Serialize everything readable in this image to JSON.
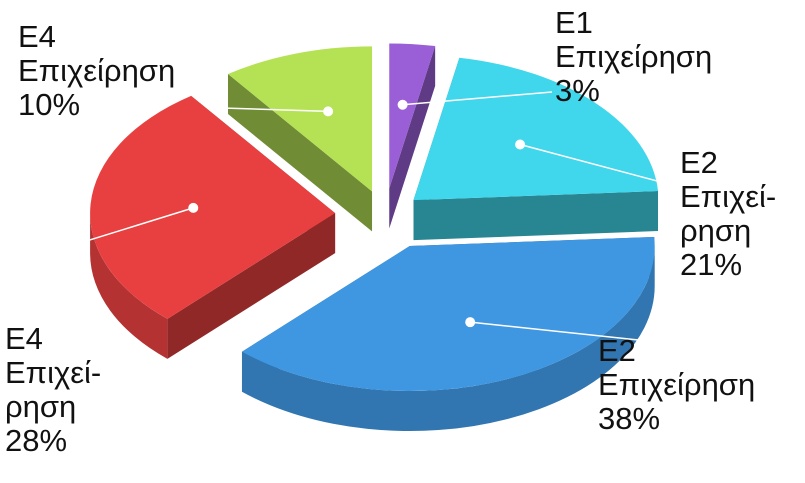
{
  "chart_data": {
    "type": "pie",
    "three_d": true,
    "exploded": true,
    "title": "",
    "legend": "none",
    "slices": [
      {
        "label_lines": [
          "E1",
          "Επιχείρηση",
          "3%"
        ],
        "value": 3,
        "color": "#9a5fd6"
      },
      {
        "label_lines": [
          "E2",
          "Επιχεί-",
          "ρηση",
          "21%"
        ],
        "value": 21,
        "color": "#40d6ec"
      },
      {
        "label_lines": [
          "E2",
          "Επιχείρηση",
          "38%"
        ],
        "value": 38,
        "color": "#3f97e2"
      },
      {
        "label_lines": [
          "E4",
          "Επιχεί-",
          "ρηση",
          "28%"
        ],
        "value": 28,
        "color": "#e84040"
      },
      {
        "label_lines": [
          "E4",
          "Επιχείρηση",
          "10%"
        ],
        "value": 10,
        "color": "#b5e255"
      }
    ]
  }
}
